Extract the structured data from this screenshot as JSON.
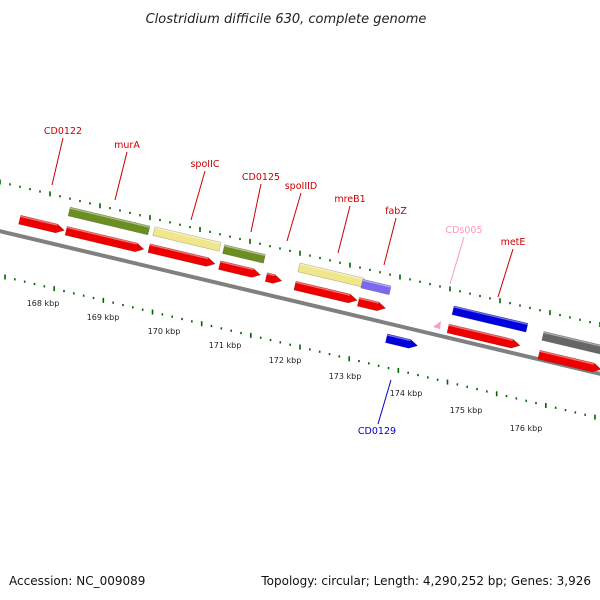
{
  "title": "Clostridium difficile 630, complete genome",
  "footer": {
    "accession": "Accession: NC_009089",
    "summary": "Topology: circular; Length: 4,290,252 bp; Genes: 3,926"
  },
  "colors": {
    "label": "#cc0000",
    "label_alt": "#0000cc",
    "label_ncrna": "#ff99bb",
    "cds": "#ee0000",
    "olive": "#6b8e23",
    "khaki": "#f0e68c",
    "blue": "#0000dd",
    "slate": "#7b68ee",
    "grey": "#666666",
    "pink": "#ff99cc",
    "tick": "#006400",
    "backbone": "#808080"
  },
  "kbp_ticks": [
    {
      "kb": 168,
      "label": "168 kbp"
    },
    {
      "kb": 169,
      "label": "169 kbp"
    },
    {
      "kb": 170,
      "label": "170 kbp"
    },
    {
      "kb": 171,
      "label": "171 kbp"
    },
    {
      "kb": 172,
      "label": "172 kbp"
    },
    {
      "kb": 173,
      "label": "173 kbp"
    },
    {
      "kb": 174,
      "label": "174 kbp"
    },
    {
      "kb": 175,
      "label": "175 kbp"
    },
    {
      "kb": 176,
      "label": "176 kbp"
    }
  ],
  "gene_labels": [
    {
      "id": "CD0122",
      "text": "CD0122",
      "color": "label"
    },
    {
      "id": "murA",
      "text": "murA",
      "color": "label"
    },
    {
      "id": "spoIIC",
      "text": "spoIIC",
      "color": "label"
    },
    {
      "id": "CD0125",
      "text": "CD0125",
      "color": "label"
    },
    {
      "id": "spoIIID",
      "text": "spoIIID",
      "color": "label"
    },
    {
      "id": "mreB1",
      "text": "mreB1",
      "color": "label"
    },
    {
      "id": "fabZ",
      "text": "fabZ",
      "color": "label"
    },
    {
      "id": "CDs005",
      "text": "CDs005",
      "color": "label_ncrna"
    },
    {
      "id": "metE",
      "text": "metE",
      "color": "label"
    },
    {
      "id": "CD0129",
      "text": "CD0129",
      "color": "label_alt"
    }
  ]
}
